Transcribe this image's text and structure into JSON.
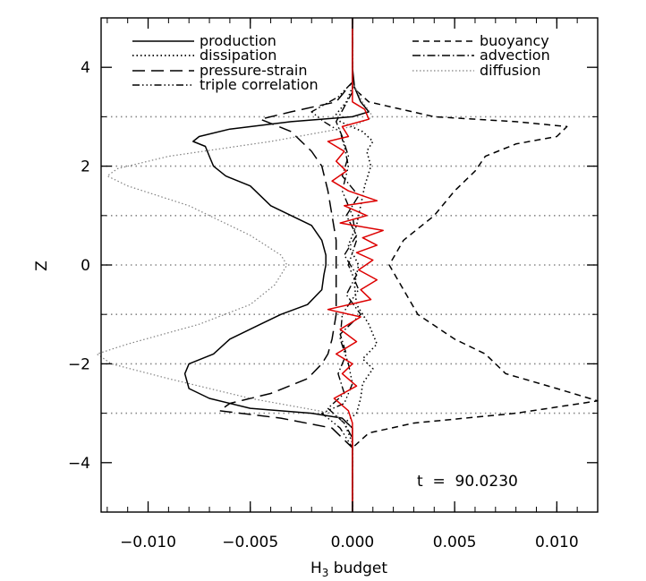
{
  "chart_data": {
    "type": "line",
    "title": "",
    "xlabel": "H",
    "xlabel_sub": "3",
    "xlabel_rest": " budget",
    "ylabel": "Z",
    "xlim": [
      -0.0123,
      0.012
    ],
    "ylim": [
      -5,
      5
    ],
    "xticks": [
      -0.01,
      -0.005,
      0.0,
      0.005,
      0.01
    ],
    "xtick_labels": [
      "−0.010",
      "−0.005",
      "0.000",
      "0.005",
      "0.010"
    ],
    "yticks": [
      -4,
      -2,
      0,
      2,
      4
    ],
    "ytick_labels": [
      "−4",
      "−2",
      "0",
      "2",
      "4"
    ],
    "hlines": [
      3.0,
      2.0,
      1.0,
      0.0,
      -1.0,
      -2.0,
      -3.0
    ],
    "annotation": "t  =  90.0230",
    "legend_placement": "top",
    "series": [
      {
        "name": "production",
        "style": "solid",
        "color": "#000000",
        "points": [
          [
            0.0,
            5.0
          ],
          [
            0.0,
            4.0
          ],
          [
            0.0001,
            3.6
          ],
          [
            0.0004,
            3.3
          ],
          [
            0.0008,
            3.1
          ],
          [
            0.0,
            3.0
          ],
          [
            -0.003,
            2.9
          ],
          [
            -0.006,
            2.75
          ],
          [
            -0.0075,
            2.6
          ],
          [
            -0.0078,
            2.5
          ],
          [
            -0.0072,
            2.4
          ],
          [
            -0.007,
            2.2
          ],
          [
            -0.0068,
            2.0
          ],
          [
            -0.0062,
            1.8
          ],
          [
            -0.005,
            1.6
          ],
          [
            -0.0045,
            1.4
          ],
          [
            -0.004,
            1.2
          ],
          [
            -0.003,
            1.0
          ],
          [
            -0.002,
            0.8
          ],
          [
            -0.0015,
            0.5
          ],
          [
            -0.0013,
            0.2
          ],
          [
            -0.0013,
            0.0
          ],
          [
            -0.0014,
            -0.2
          ],
          [
            -0.0015,
            -0.5
          ],
          [
            -0.0022,
            -0.8
          ],
          [
            -0.0035,
            -1.0
          ],
          [
            -0.0045,
            -1.2
          ],
          [
            -0.006,
            -1.5
          ],
          [
            -0.0068,
            -1.8
          ],
          [
            -0.008,
            -2.0
          ],
          [
            -0.0082,
            -2.2
          ],
          [
            -0.008,
            -2.5
          ],
          [
            -0.007,
            -2.7
          ],
          [
            -0.005,
            -2.9
          ],
          [
            -0.002,
            -3.0
          ],
          [
            -0.0005,
            -3.1
          ],
          [
            0.0,
            -3.3
          ],
          [
            0.0,
            -4.0
          ],
          [
            0.0,
            -5.0
          ]
        ]
      },
      {
        "name": "dissipation",
        "style": "dotted",
        "color": "#000000",
        "points": [
          [
            0.0,
            5.0
          ],
          [
            0.0,
            3.6
          ],
          [
            -0.0003,
            3.3
          ],
          [
            -0.0008,
            3.05
          ],
          [
            -0.0006,
            2.9
          ],
          [
            0.0005,
            2.7
          ],
          [
            0.001,
            2.5
          ],
          [
            0.0007,
            2.3
          ],
          [
            0.0009,
            2.0
          ],
          [
            0.0006,
            1.6
          ],
          [
            0.0004,
            1.2
          ],
          [
            0.0002,
            0.8
          ],
          [
            -0.0002,
            0.4
          ],
          [
            0.0003,
            0.0
          ],
          [
            0.0001,
            -0.4
          ],
          [
            0.0002,
            -0.8
          ],
          [
            0.0008,
            -1.2
          ],
          [
            0.0012,
            -1.6
          ],
          [
            0.0005,
            -1.9
          ],
          [
            0.001,
            -2.1
          ],
          [
            0.0005,
            -2.4
          ],
          [
            0.0004,
            -2.7
          ],
          [
            0.0002,
            -3.0
          ],
          [
            -0.0004,
            -3.2
          ],
          [
            0.0,
            -3.6
          ],
          [
            0.0,
            -5.0
          ]
        ]
      },
      {
        "name": "pressure-strain",
        "style": "longdash",
        "color": "#000000",
        "points": [
          [
            0.0,
            5.0
          ],
          [
            0.0,
            3.7
          ],
          [
            -0.0008,
            3.3
          ],
          [
            -0.003,
            3.1
          ],
          [
            -0.0045,
            2.95
          ],
          [
            -0.003,
            2.7
          ],
          [
            -0.002,
            2.3
          ],
          [
            -0.0015,
            2.0
          ],
          [
            -0.0012,
            1.5
          ],
          [
            -0.001,
            1.0
          ],
          [
            -0.0008,
            0.5
          ],
          [
            -0.0008,
            0.0
          ],
          [
            -0.0008,
            -0.5
          ],
          [
            -0.0008,
            -1.0
          ],
          [
            -0.001,
            -1.5
          ],
          [
            -0.0012,
            -1.8
          ],
          [
            -0.0015,
            -2.0
          ],
          [
            -0.0022,
            -2.3
          ],
          [
            -0.004,
            -2.6
          ],
          [
            -0.006,
            -2.8
          ],
          [
            -0.0065,
            -2.95
          ],
          [
            -0.0035,
            -3.1
          ],
          [
            -0.001,
            -3.3
          ],
          [
            0.0,
            -3.7
          ],
          [
            0.0,
            -5.0
          ]
        ]
      },
      {
        "name": "triple correlation",
        "style": "dashdotdot",
        "color": "#000000",
        "points": [
          [
            0.0,
            5.0
          ],
          [
            0.0,
            3.7
          ],
          [
            -0.0007,
            3.4
          ],
          [
            -0.002,
            3.1
          ],
          [
            -0.0014,
            2.9
          ],
          [
            -0.0006,
            2.7
          ],
          [
            -0.0004,
            2.4
          ],
          [
            -0.0002,
            2.0
          ],
          [
            -0.0005,
            1.5
          ],
          [
            0.0,
            1.0
          ],
          [
            0.0002,
            0.5
          ],
          [
            -0.0002,
            0.0
          ],
          [
            0.0003,
            -0.5
          ],
          [
            -0.0005,
            -1.0
          ],
          [
            -0.0006,
            -1.5
          ],
          [
            -0.0002,
            -2.0
          ],
          [
            0.0,
            -2.4
          ],
          [
            -0.0004,
            -2.8
          ],
          [
            -0.0015,
            -3.0
          ],
          [
            -0.0006,
            -3.3
          ],
          [
            0.0,
            -3.7
          ],
          [
            0.0,
            -5.0
          ]
        ]
      },
      {
        "name": "buoyancy",
        "style": "dashed",
        "color": "#000000",
        "points": [
          [
            0.0,
            5.0
          ],
          [
            0.0,
            3.6
          ],
          [
            0.0008,
            3.3
          ],
          [
            0.004,
            3.0
          ],
          [
            0.008,
            2.9
          ],
          [
            0.0105,
            2.8
          ],
          [
            0.01,
            2.6
          ],
          [
            0.008,
            2.45
          ],
          [
            0.0065,
            2.2
          ],
          [
            0.006,
            1.9
          ],
          [
            0.005,
            1.5
          ],
          [
            0.004,
            1.0
          ],
          [
            0.0025,
            0.5
          ],
          [
            0.0018,
            0.0
          ],
          [
            0.0025,
            -0.5
          ],
          [
            0.0032,
            -1.0
          ],
          [
            0.005,
            -1.5
          ],
          [
            0.0065,
            -1.8
          ],
          [
            0.0075,
            -2.2
          ],
          [
            0.01,
            -2.5
          ],
          [
            0.012,
            -2.75
          ],
          [
            0.008,
            -3.0
          ],
          [
            0.003,
            -3.2
          ],
          [
            0.0008,
            -3.4
          ],
          [
            0.0,
            -3.7
          ],
          [
            0.0,
            -5.0
          ]
        ]
      },
      {
        "name": "advection",
        "style": "dashdot",
        "color": "#000000",
        "points": [
          [
            0.0,
            5.0
          ],
          [
            0.0,
            3.5
          ],
          [
            -0.0004,
            3.2
          ],
          [
            -0.0008,
            2.9
          ],
          [
            -0.0005,
            2.6
          ],
          [
            -0.0002,
            2.2
          ],
          [
            -0.0005,
            1.8
          ],
          [
            0.0003,
            1.4
          ],
          [
            -0.0003,
            1.0
          ],
          [
            0.0002,
            0.6
          ],
          [
            -0.0004,
            0.2
          ],
          [
            0.0002,
            -0.2
          ],
          [
            -0.0003,
            -0.6
          ],
          [
            0.0004,
            -1.0
          ],
          [
            -0.0006,
            -1.4
          ],
          [
            -0.0003,
            -1.8
          ],
          [
            -0.0007,
            -2.2
          ],
          [
            -0.0004,
            -2.6
          ],
          [
            -0.0012,
            -2.9
          ],
          [
            -0.0004,
            -3.2
          ],
          [
            0.0,
            -3.5
          ],
          [
            0.0,
            -5.0
          ]
        ]
      },
      {
        "name": "diffusion",
        "style": "dotted-thin",
        "color": "#808080",
        "points": [
          [
            0.0,
            5.0
          ],
          [
            0.0,
            3.7
          ],
          [
            0.0005,
            3.3
          ],
          [
            0.001,
            3.0
          ],
          [
            0.0,
            2.8
          ],
          [
            -0.004,
            2.5
          ],
          [
            -0.009,
            2.2
          ],
          [
            -0.0115,
            1.95
          ],
          [
            -0.012,
            1.8
          ],
          [
            -0.011,
            1.6
          ],
          [
            -0.008,
            1.2
          ],
          [
            -0.005,
            0.6
          ],
          [
            -0.0035,
            0.2
          ],
          [
            -0.0032,
            0.0
          ],
          [
            -0.0038,
            -0.4
          ],
          [
            -0.005,
            -0.8
          ],
          [
            -0.0075,
            -1.2
          ],
          [
            -0.011,
            -1.6
          ],
          [
            -0.0125,
            -1.8
          ],
          [
            -0.0118,
            -2.0
          ],
          [
            -0.009,
            -2.3
          ],
          [
            -0.005,
            -2.7
          ],
          [
            -0.001,
            -3.0
          ],
          [
            0.0,
            -3.3
          ],
          [
            0.0,
            -5.0
          ]
        ]
      },
      {
        "name": "",
        "style": "solid",
        "color": "#dd0000",
        "points": [
          [
            0.0,
            5.0
          ],
          [
            0.0,
            3.3
          ],
          [
            0.0006,
            3.15
          ],
          [
            0.0008,
            2.95
          ],
          [
            -0.0005,
            2.8
          ],
          [
            -0.0002,
            2.6
          ],
          [
            -0.0012,
            2.5
          ],
          [
            -0.0004,
            2.3
          ],
          [
            -0.0008,
            2.1
          ],
          [
            -0.0003,
            1.9
          ],
          [
            -0.001,
            1.7
          ],
          [
            -0.0002,
            1.5
          ],
          [
            0.0012,
            1.3
          ],
          [
            -0.0004,
            1.2
          ],
          [
            0.0007,
            1.0
          ],
          [
            -0.0006,
            0.85
          ],
          [
            0.0015,
            0.7
          ],
          [
            0.0005,
            0.55
          ],
          [
            0.0012,
            0.4
          ],
          [
            0.0002,
            0.25
          ],
          [
            0.001,
            0.1
          ],
          [
            0.0003,
            -0.1
          ],
          [
            0.0012,
            -0.3
          ],
          [
            0.0004,
            -0.5
          ],
          [
            0.0009,
            -0.7
          ],
          [
            -0.0012,
            -0.9
          ],
          [
            0.0004,
            -1.05
          ],
          [
            -0.0006,
            -1.3
          ],
          [
            0.0002,
            -1.55
          ],
          [
            -0.0008,
            -1.8
          ],
          [
            0.0,
            -2.0
          ],
          [
            -0.0005,
            -2.2
          ],
          [
            0.0002,
            -2.45
          ],
          [
            -0.0009,
            -2.7
          ],
          [
            -0.0002,
            -2.95
          ],
          [
            0.0,
            -3.2
          ],
          [
            0.0,
            -5.0
          ]
        ]
      }
    ]
  }
}
